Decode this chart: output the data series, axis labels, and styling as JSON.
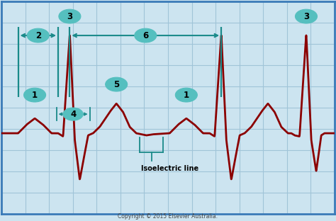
{
  "bg_color": "#cce4f0",
  "grid_color": "#a0c4d8",
  "ecg_color": "#8b0000",
  "teal_color": "#1a8a8a",
  "annotation_bg": "#55bfbf",
  "border_color": "#3a7ab8",
  "copyright": "Copyright © 2015 Elsevier Australia.",
  "isoelectric_label": "Isoelectric line",
  "figsize": [
    4.74,
    3.12
  ],
  "dpi": 100,
  "baseline": 0.38,
  "ecg_lw": 2.0,
  "grid_nx": 14,
  "grid_ny": 10
}
